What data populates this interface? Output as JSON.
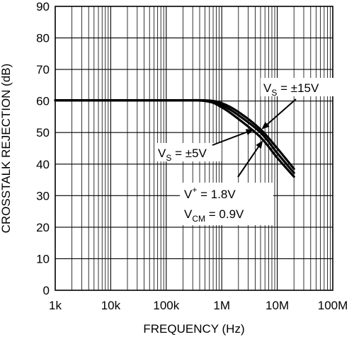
{
  "chart_data": {
    "type": "line",
    "title": "",
    "xlabel": "FREQUENCY (Hz)",
    "ylabel": "CROSSTALK REJECTION (dB)",
    "x_scale": "log",
    "xlim": [
      1000,
      100000000
    ],
    "ylim": [
      0,
      90
    ],
    "x_ticks": [
      1000,
      10000,
      100000,
      1000000,
      10000000,
      100000000
    ],
    "x_tick_labels": [
      "1k",
      "10k",
      "100k",
      "1M",
      "10M",
      "100M"
    ],
    "y_ticks": [
      0,
      10,
      20,
      30,
      40,
      50,
      60,
      70,
      80,
      90
    ],
    "y_tick_labels": [
      "0",
      "10",
      "20",
      "30",
      "40",
      "50",
      "60",
      "70",
      "80",
      "90"
    ],
    "grid": true,
    "series": [
      {
        "x": [
          1000,
          100000,
          500000,
          1000000,
          2000000,
          5000000,
          10000000,
          20000000
        ],
        "y": [
          60.2,
          60.2,
          60.2,
          59.3,
          56.5,
          51.0,
          45.0,
          38.5
        ]
      },
      {
        "x": [
          1000,
          100000,
          500000,
          1000000,
          2000000,
          5000000,
          10000000,
          20000000
        ],
        "y": [
          60.2,
          60.2,
          60.1,
          58.7,
          55.5,
          50.0,
          43.5,
          37.2
        ]
      },
      {
        "x": [
          1000,
          100000,
          500000,
          1000000,
          2000000,
          5000000,
          10000000,
          20000000
        ],
        "y": [
          60.2,
          60.2,
          60.0,
          58.0,
          54.3,
          48.5,
          42.0,
          36.0
        ]
      }
    ],
    "annotations": [
      {
        "id": "vs15",
        "main": "V",
        "sub": "S",
        "rest": " = ±15V",
        "arrow_to": {
          "x": 5200000,
          "y": 51.0
        }
      },
      {
        "id": "vs5",
        "main": "V",
        "sub": "S",
        "rest": " = ±5V",
        "arrow_to": {
          "x": 3800000,
          "y": 51.0
        }
      },
      {
        "id": "vplus",
        "main": "V",
        "sup": "+",
        "rest": " = 1.8V",
        "arrow_to": {
          "x": 5500000,
          "y": 47.5
        }
      },
      {
        "id": "vcm",
        "main": "V",
        "sub": "CM",
        "rest": " =  0.9V"
      }
    ]
  }
}
